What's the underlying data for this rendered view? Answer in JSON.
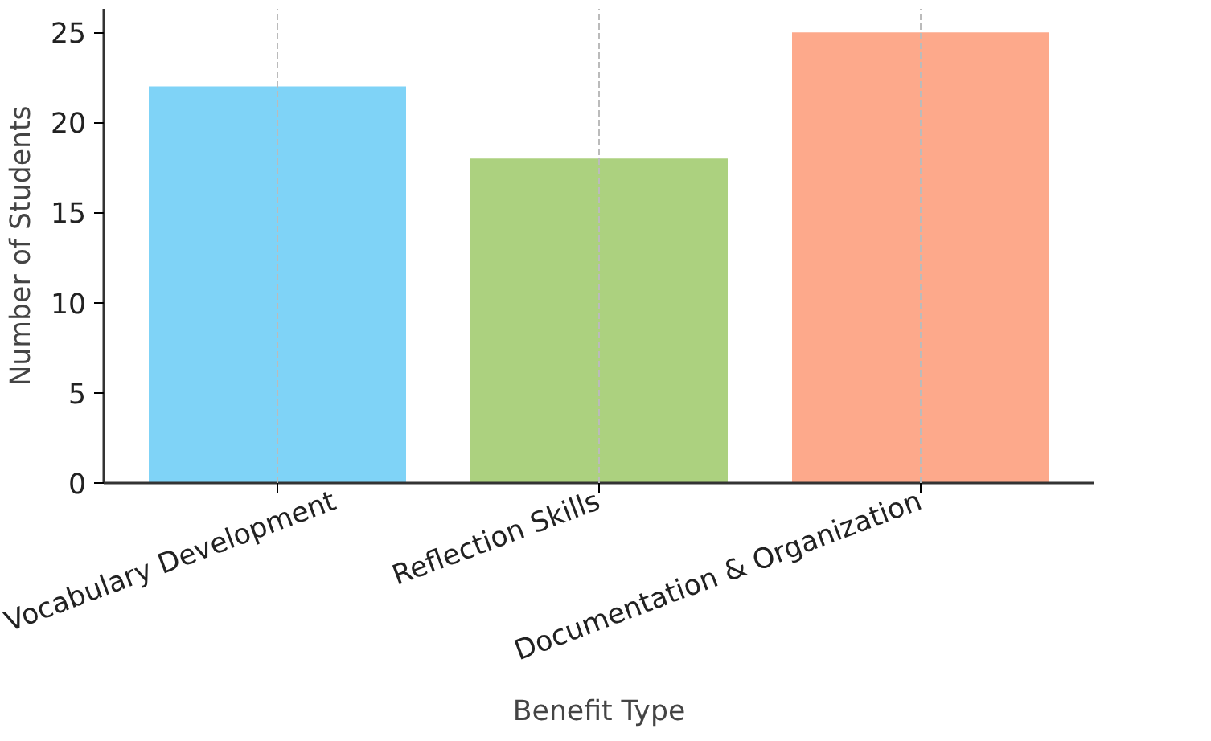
{
  "chart_data": {
    "type": "bar",
    "xlabel": "Benefit Type",
    "ylabel": "Number of Students",
    "categories": [
      "Vocabulary Development",
      "Reflection Skills",
      "Documentation & Organization"
    ],
    "values": [
      22,
      18,
      25
    ],
    "colors": [
      "#7fd3f7",
      "#acd17f",
      "#fda98b"
    ],
    "ylim": [
      0,
      26.3
    ],
    "yticks": [
      0,
      5,
      10,
      15,
      20,
      25
    ],
    "grid": "x"
  }
}
